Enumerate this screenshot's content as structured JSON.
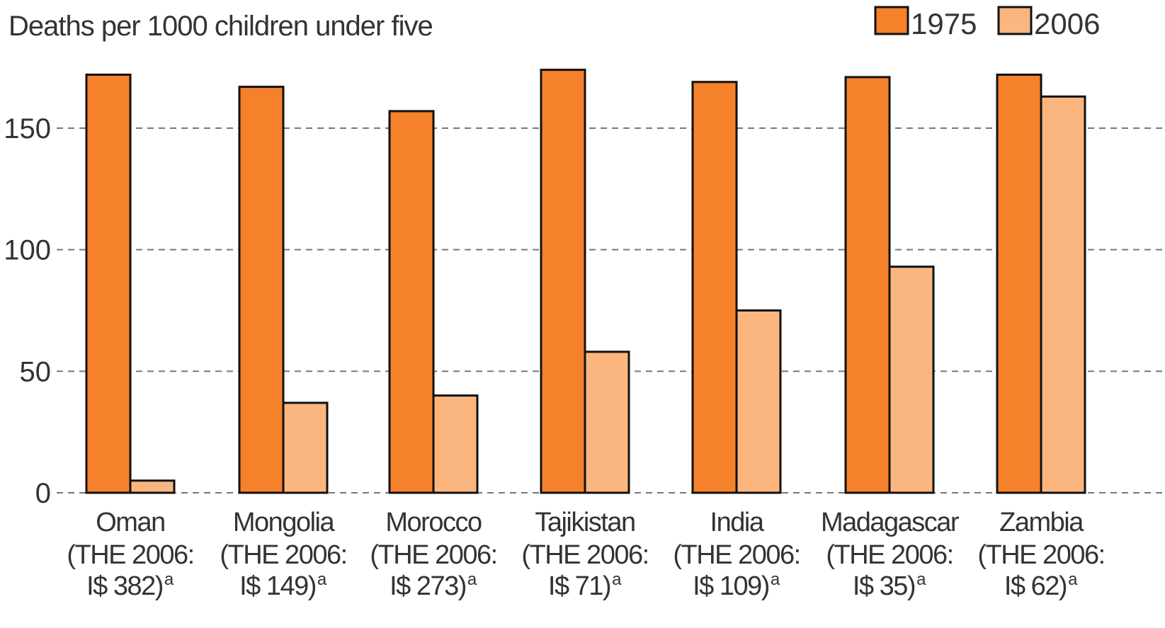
{
  "chart_data": {
    "type": "bar",
    "ylabel": "Deaths per 1000 children under five",
    "xlabel": "",
    "ylim": [
      0,
      175
    ],
    "yticks": [
      0,
      50,
      100,
      150
    ],
    "grid": true,
    "legend_position": "top-right",
    "categories": [
      {
        "name": "Oman",
        "line2": "(THE 2006:",
        "line3": "I$ 382)",
        "note": "a"
      },
      {
        "name": "Mongolia",
        "line2": "(THE 2006:",
        "line3": "I$ 149)",
        "note": "a"
      },
      {
        "name": "Morocco",
        "line2": "(THE 2006:",
        "line3": "I$ 273)",
        "note": "a"
      },
      {
        "name": "Tajikistan",
        "line2": "(THE 2006:",
        "line3": "I$ 71)",
        "note": "a"
      },
      {
        "name": "India",
        "line2": "(THE 2006:",
        "line3": "I$ 109)",
        "note": "a"
      },
      {
        "name": "Madagascar",
        "line2": "(THE 2006:",
        "line3": "I$ 35)",
        "note": "a"
      },
      {
        "name": "Zambia",
        "line2": "(THE 2006:",
        "line3": "I$ 62)",
        "note": "a"
      }
    ],
    "series": [
      {
        "name": "1975",
        "color": "#f5812a",
        "values": [
          172,
          167,
          157,
          174,
          169,
          171,
          172
        ]
      },
      {
        "name": "2006",
        "color": "#fbb680",
        "values": [
          5,
          37,
          40,
          58,
          75,
          93,
          163
        ]
      }
    ]
  }
}
